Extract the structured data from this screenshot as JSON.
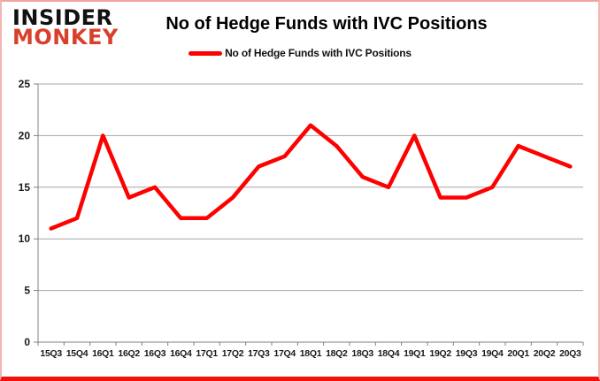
{
  "header": {
    "logo_line1": "INSIDER",
    "logo_line2": "MONKEY",
    "title": "No of Hedge Funds with IVC Positions"
  },
  "legend": {
    "label": "No of Hedge Funds with IVC Positions"
  },
  "chart_data": {
    "type": "line",
    "title": "No of Hedge Funds with IVC Positions",
    "categories": [
      "15Q3",
      "15Q4",
      "16Q1",
      "16Q2",
      "16Q3",
      "16Q4",
      "17Q1",
      "17Q2",
      "17Q3",
      "17Q4",
      "18Q1",
      "18Q2",
      "18Q3",
      "18Q4",
      "19Q1",
      "19Q2",
      "19Q3",
      "19Q4",
      "20Q1",
      "20Q2",
      "20Q3"
    ],
    "values": [
      11,
      12,
      20,
      14,
      15,
      12,
      12,
      14,
      17,
      18,
      21,
      19,
      16,
      15,
      20,
      14,
      14,
      15,
      19,
      18,
      17
    ],
    "xlabel": "",
    "ylabel": "",
    "ylim": [
      0,
      25
    ],
    "yticks": [
      0,
      5,
      10,
      15,
      20,
      25
    ],
    "grid": true,
    "legend_position": "top"
  },
  "colors": {
    "series_line": "#fe0000",
    "gridline": "#a6a6a6",
    "axis": "#808080",
    "tick_text": "#1a1a1a",
    "logo_red": "#d8402c"
  }
}
